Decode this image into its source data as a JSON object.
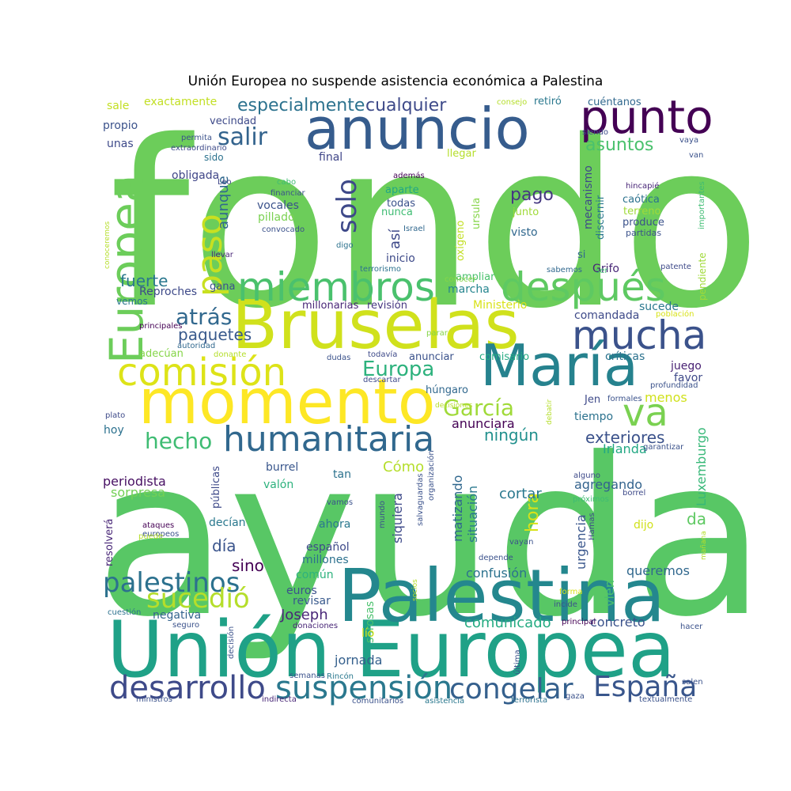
{
  "chart_data": {
    "type": "wordcloud",
    "title": "Unión Europea no suspende asistencia económica a Palestina",
    "words": [
      {
        "text": "fondo",
        "color": "#6ccd5a"
      },
      {
        "text": "ayuda",
        "color": "#58c765"
      },
      {
        "text": "Unión Europea",
        "color": "#1fa187"
      },
      {
        "text": "Palestina",
        "color": "#24878e"
      },
      {
        "text": "Bruselas",
        "color": "#d0e11c"
      },
      {
        "text": "momento",
        "color": "#fde725"
      },
      {
        "text": "anuncio",
        "color": "#365c8d"
      },
      {
        "text": "María",
        "color": "#26828e"
      },
      {
        "text": "punto",
        "color": "#440154"
      },
      {
        "text": "Europea",
        "color": "#6ccd5a"
      },
      {
        "text": "miembros",
        "color": "#4ac16d"
      },
      {
        "text": "después",
        "color": "#5ec962"
      },
      {
        "text": "mucha",
        "color": "#3b528b"
      },
      {
        "text": "comisión",
        "color": "#dde318"
      },
      {
        "text": "humanitaria",
        "color": "#31688e"
      },
      {
        "text": "paso",
        "color": "#c8e020"
      },
      {
        "text": "va",
        "color": "#7ad151"
      },
      {
        "text": "desarrollo",
        "color": "#3e4a89"
      },
      {
        "text": "suspensión",
        "color": "#2a788e"
      },
      {
        "text": "congelar",
        "color": "#35608d"
      },
      {
        "text": "España",
        "color": "#39568c"
      },
      {
        "text": "palestinos",
        "color": "#2c718e"
      },
      {
        "text": "sucedió",
        "color": "#b5de2b"
      },
      {
        "text": "hecho",
        "color": "#3fbc73"
      },
      {
        "text": "salir",
        "color": "#33638d"
      },
      {
        "text": "solo",
        "color": "#3e4989"
      },
      {
        "text": "atrás",
        "color": "#31688e"
      },
      {
        "text": "Europa",
        "color": "#2db27d"
      },
      {
        "text": "García",
        "color": "#a0da39"
      },
      {
        "text": "especialmente",
        "color": "#2c728e"
      },
      {
        "text": "cualquier",
        "color": "#3e4a89"
      },
      {
        "text": "asuntos",
        "color": "#4ac16d"
      },
      {
        "text": "pago",
        "color": "#453781"
      },
      {
        "text": "fuerte",
        "color": "#2a778e"
      },
      {
        "text": "paquetes",
        "color": "#38598c"
      },
      {
        "text": "exteriores",
        "color": "#3b528b"
      },
      {
        "text": "ningún",
        "color": "#21908d"
      },
      {
        "text": "Joseph",
        "color": "#482677"
      },
      {
        "text": "día",
        "color": "#3a548c"
      },
      {
        "text": "sino",
        "color": "#440154"
      },
      {
        "text": "hora",
        "color": "#d8e219"
      },
      {
        "text": "da",
        "color": "#5ec962"
      },
      {
        "text": "comunicado",
        "color": "#25ab82"
      },
      {
        "text": "aunque",
        "color": "#31688e"
      },
      {
        "text": "así",
        "color": "#3e4989"
      },
      {
        "text": "anunciara",
        "color": "#440154"
      },
      {
        "text": "Cómo",
        "color": "#b5de2b"
      },
      {
        "text": "Luxemburgo",
        "color": "#37b878"
      },
      {
        "text": "Irlanda",
        "color": "#22a884"
      },
      {
        "text": "agregando",
        "color": "#33638d"
      },
      {
        "text": "cortar",
        "color": "#2a788e"
      },
      {
        "text": "confusión",
        "color": "#2c728e"
      },
      {
        "text": "queremos",
        "color": "#31688e"
      },
      {
        "text": "jornada",
        "color": "#35608d"
      },
      {
        "text": "concreto",
        "color": "#3b528b"
      },
      {
        "text": "menos",
        "color": "#d0e11c"
      },
      {
        "text": "sucede",
        "color": "#2a788e"
      },
      {
        "text": "comandada",
        "color": "#3e4a89"
      },
      {
        "text": "críticas",
        "color": "#2c728e"
      },
      {
        "text": "juego",
        "color": "#482173"
      },
      {
        "text": "favor",
        "color": "#3e4989"
      },
      {
        "text": "tiempo",
        "color": "#2c728e"
      },
      {
        "text": "hoy",
        "color": "#2c718e"
      },
      {
        "text": "periodista",
        "color": "#471063"
      },
      {
        "text": "sorpresa",
        "color": "#73d056"
      },
      {
        "text": "burrel",
        "color": "#39568c"
      },
      {
        "text": "valón",
        "color": "#2db27d"
      },
      {
        "text": "tan",
        "color": "#2c728e"
      },
      {
        "text": "ahora",
        "color": "#2a788e"
      },
      {
        "text": "español",
        "color": "#3e4a89"
      },
      {
        "text": "millones",
        "color": "#2c718e"
      },
      {
        "text": "común",
        "color": "#2db27d"
      },
      {
        "text": "euros",
        "color": "#3b528b"
      },
      {
        "text": "revisar",
        "color": "#38598c"
      },
      {
        "text": "negativa",
        "color": "#33638d"
      },
      {
        "text": "siquiera",
        "color": "#3e4a89"
      },
      {
        "text": "matizando",
        "color": "#31688e"
      },
      {
        "text": "situación",
        "color": "#2a788e"
      },
      {
        "text": "urgencia",
        "color": "#39568c"
      },
      {
        "text": "vlen",
        "color": "#4ac16d"
      },
      {
        "text": "dijo",
        "color": "#d0e11c"
      },
      {
        "text": "Grifo",
        "color": "#482677"
      },
      {
        "text": "marcha",
        "color": "#25858e"
      },
      {
        "text": "Ministerio",
        "color": "#d8e219"
      },
      {
        "text": "millonarias",
        "color": "#482677"
      },
      {
        "text": "revisión",
        "color": "#453781"
      },
      {
        "text": "Reproches",
        "color": "#3e4a89"
      },
      {
        "text": "vemos",
        "color": "#2a788e"
      },
      {
        "text": "gana",
        "color": "#3b528b"
      },
      {
        "text": "obligada",
        "color": "#404688"
      },
      {
        "text": "vecindad",
        "color": "#3e4a89"
      },
      {
        "text": "sido",
        "color": "#2c728e"
      },
      {
        "text": "final",
        "color": "#404688"
      },
      {
        "text": "llegar",
        "color": "#b5de2b"
      },
      {
        "text": "aparte",
        "color": "#22a884"
      },
      {
        "text": "todas",
        "color": "#3b528b"
      },
      {
        "text": "nunca",
        "color": "#3fbc73"
      },
      {
        "text": "vocales",
        "color": "#3b528b"
      },
      {
        "text": "pillado",
        "color": "#7ad151"
      },
      {
        "text": "visto",
        "color": "#31688e"
      },
      {
        "text": "junto",
        "color": "#a0da39"
      },
      {
        "text": "terreno",
        "color": "#a0da39"
      },
      {
        "text": "caótica",
        "color": "#2c728e"
      },
      {
        "text": "produce",
        "color": "#3b528b"
      },
      {
        "text": "partidas",
        "color": "#3b528b"
      },
      {
        "text": "mecanismo",
        "color": "#3e4a89"
      },
      {
        "text": "discernir",
        "color": "#2a788e"
      },
      {
        "text": "oxígeno",
        "color": "#c2df23"
      },
      {
        "text": "ursula",
        "color": "#86d549"
      },
      {
        "text": "inicio",
        "color": "#3e4a89"
      },
      {
        "text": "si",
        "color": "#31688e"
      },
      {
        "text": "ampliar",
        "color": "#4ac16d"
      },
      {
        "text": "anunciar",
        "color": "#3b528b"
      },
      {
        "text": "húngaro",
        "color": "#31688e"
      },
      {
        "text": "comisario",
        "color": "#25ab82"
      },
      {
        "text": "decían",
        "color": "#2a788e"
      },
      {
        "text": "públicas",
        "color": "#3e4a89"
      },
      {
        "text": "resolverá",
        "color": "#482677"
      },
      {
        "text": "sorosas",
        "color": "#4ac16d"
      },
      {
        "text": "lío",
        "color": "#d8e219"
      },
      {
        "text": "adecúan",
        "color": "#86d549"
      },
      {
        "text": "pendiente",
        "color": "#a0da39"
      },
      {
        "text": "exactamente",
        "color": "#c2df23"
      },
      {
        "text": "sale",
        "color": "#c2df23"
      },
      {
        "text": "propio",
        "color": "#3b528b"
      },
      {
        "text": "unas",
        "color": "#3e4a89"
      },
      {
        "text": "retiró",
        "color": "#2a788e"
      },
      {
        "text": "cuéntanos",
        "color": "#31688e"
      },
      {
        "text": "consejo",
        "color": "#b5de2b"
      },
      {
        "text": "permita",
        "color": "#3b528b"
      },
      {
        "text": "extraordinario",
        "color": "#3e4a89"
      },
      {
        "text": "Leo",
        "color": "#404688"
      },
      {
        "text": "llevar",
        "color": "#482677"
      },
      {
        "text": "principales",
        "color": "#440154"
      },
      {
        "text": "autoridad",
        "color": "#31688e"
      },
      {
        "text": "donante",
        "color": "#b5de2b"
      },
      {
        "text": "dudas",
        "color": "#3b528b"
      },
      {
        "text": "todavía",
        "color": "#3e4a89"
      },
      {
        "text": "parar",
        "color": "#86d549"
      },
      {
        "text": "descartar",
        "color": "#3e4a89"
      },
      {
        "text": "además",
        "color": "#440154"
      },
      {
        "text": "cabo",
        "color": "#3fbc73"
      },
      {
        "text": "financiar",
        "color": "#3b528b"
      },
      {
        "text": "convocado",
        "color": "#3b528b"
      },
      {
        "text": "Israel",
        "color": "#31688e"
      },
      {
        "text": "digo",
        "color": "#2c728e"
      },
      {
        "text": "terrorismo",
        "color": "#2c728e"
      },
      {
        "text": "conocer",
        "color": "#86d549"
      },
      {
        "text": "sabemos",
        "color": "#31688e"
      },
      {
        "text": "ser",
        "color": "#3fbc73"
      },
      {
        "text": "patente",
        "color": "#3e4a89"
      },
      {
        "text": "población",
        "color": "#d8e219"
      },
      {
        "text": "profundidad",
        "color": "#3b528b"
      },
      {
        "text": "formales",
        "color": "#3b528b"
      },
      {
        "text": "Jen",
        "color": "#3e4a89"
      },
      {
        "text": "siendo",
        "color": "#3e4a89"
      },
      {
        "text": "van",
        "color": "#3b528b"
      },
      {
        "text": "vaya",
        "color": "#3b528b"
      },
      {
        "text": "hincapié",
        "color": "#482677"
      },
      {
        "text": "importantes",
        "color": "#3fbc73"
      },
      {
        "text": "conoceremos",
        "color": "#b5de2b"
      },
      {
        "text": "plato",
        "color": "#3e4a89"
      },
      {
        "text": "decisiones",
        "color": "#b5de2b"
      },
      {
        "text": "debatir",
        "color": "#b5de2b"
      },
      {
        "text": "garantizar",
        "color": "#3b528b"
      },
      {
        "text": "alguno",
        "color": "#3e4a89"
      },
      {
        "text": "borrel",
        "color": "#3e4a89"
      },
      {
        "text": "próximos",
        "color": "#3fbc73"
      },
      {
        "text": "Hamas",
        "color": "#3e4a89"
      },
      {
        "text": "vayan",
        "color": "#3b528b"
      },
      {
        "text": "mañana",
        "color": "#b5de2b"
      },
      {
        "text": "depende",
        "color": "#3b528b"
      },
      {
        "text": "forma",
        "color": "#d8e219"
      },
      {
        "text": "incide",
        "color": "#3b528b"
      },
      {
        "text": "principal",
        "color": "#440154"
      },
      {
        "text": "hacer",
        "color": "#3b528b"
      },
      {
        "text": "salen",
        "color": "#3b528b"
      },
      {
        "text": "textualmente",
        "color": "#3b528b"
      },
      {
        "text": "gaza",
        "color": "#3b528b"
      },
      {
        "text": "terrorista",
        "color": "#2c728e"
      },
      {
        "text": "asistencia",
        "color": "#2a788e"
      },
      {
        "text": "comunitarios",
        "color": "#3b528b"
      },
      {
        "text": "indirecta",
        "color": "#482677"
      },
      {
        "text": "ministros",
        "color": "#3b528b"
      },
      {
        "text": "semanas",
        "color": "#3b528b"
      },
      {
        "text": "Rincón",
        "color": "#2a788e"
      },
      {
        "text": "donaciones",
        "color": "#482677"
      },
      {
        "text": "decisión",
        "color": "#3b528b"
      },
      {
        "text": "seguro",
        "color": "#3b528b"
      },
      {
        "text": "cuestión",
        "color": "#2c728e"
      },
      {
        "text": "última",
        "color": "#3b528b"
      },
      {
        "text": "socios",
        "color": "#b5de2b"
      },
      {
        "text": "ataques",
        "color": "#440154"
      },
      {
        "text": "europeos",
        "color": "#3b528b"
      },
      {
        "text": "puede",
        "color": "#b5de2b"
      },
      {
        "text": "vamos",
        "color": "#3b528b"
      },
      {
        "text": "mundo",
        "color": "#3b528b"
      },
      {
        "text": "salvaguardas",
        "color": "#3b528b"
      },
      {
        "text": "organización",
        "color": "#3b528b"
      }
    ]
  }
}
